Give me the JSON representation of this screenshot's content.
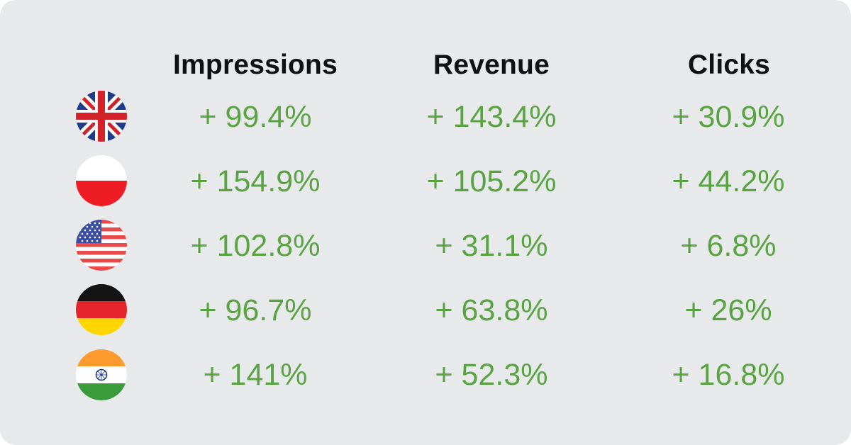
{
  "columns": [
    "Impressions",
    "Revenue",
    "Clicks"
  ],
  "rows": [
    {
      "country_flag": "united-kingdom-flag-icon",
      "values": [
        "+ 99.4%",
        "+ 143.4%",
        "+ 30.9%"
      ]
    },
    {
      "country_flag": "poland-flag-icon",
      "values": [
        "+ 154.9%",
        "+ 105.2%",
        "+ 44.2%"
      ]
    },
    {
      "country_flag": "united-states-flag-icon",
      "values": [
        "+ 102.8%",
        "+ 31.1%",
        "+ 6.8%"
      ]
    },
    {
      "country_flag": "germany-flag-icon",
      "values": [
        "+ 96.7%",
        "+ 63.8%",
        "+ 26%"
      ]
    },
    {
      "country_flag": "india-flag-icon",
      "values": [
        "+ 141%",
        "+ 52.3%",
        "+ 16.8%"
      ]
    }
  ],
  "colors": {
    "background": "#e8e9eb",
    "header_text": "#111111",
    "value_text": "#5aa343"
  }
}
